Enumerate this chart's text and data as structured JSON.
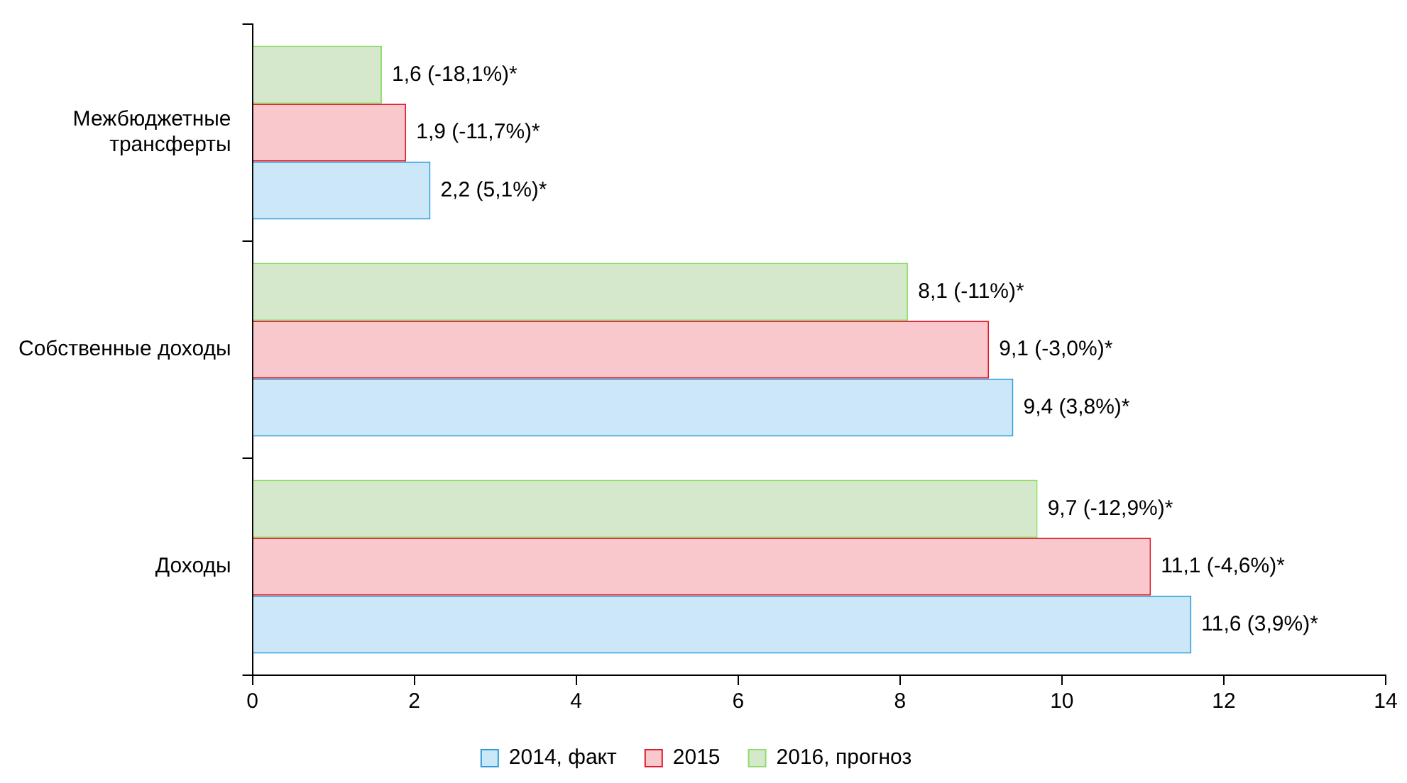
{
  "chart_data": {
    "type": "bar",
    "orientation": "horizontal",
    "categories": [
      "Межбюджетные трансферты",
      "Собственные доходы",
      "Доходы"
    ],
    "series": [
      {
        "name": "2014, факт",
        "color": "#cce8f8",
        "values": [
          2.2,
          9.4,
          11.6
        ],
        "value_labels": [
          "2,2 (5,1%)*",
          "9,4 (3,8%)*",
          "11,6 (3,9%)*"
        ]
      },
      {
        "name": "2015",
        "color": "#f8c8cc",
        "values": [
          1.9,
          9.1,
          11.1
        ],
        "value_labels": [
          "1,9 (-11,7%)*",
          "9,1 (-3,0%)*",
          "11,1 (-4,6%)*"
        ]
      },
      {
        "name": "2016, прогноз",
        "color": "#d5e8cc",
        "values": [
          1.6,
          8.1,
          9.7
        ],
        "value_labels": [
          "1,6 (-18,1%)*",
          "8,1 (-11%)*",
          "9,7 (-12,9%)*"
        ]
      }
    ],
    "xlim": [
      0,
      14
    ],
    "xticks": [
      0,
      2,
      4,
      6,
      8,
      10,
      12,
      14
    ],
    "grid": false,
    "legend": "bottom"
  }
}
